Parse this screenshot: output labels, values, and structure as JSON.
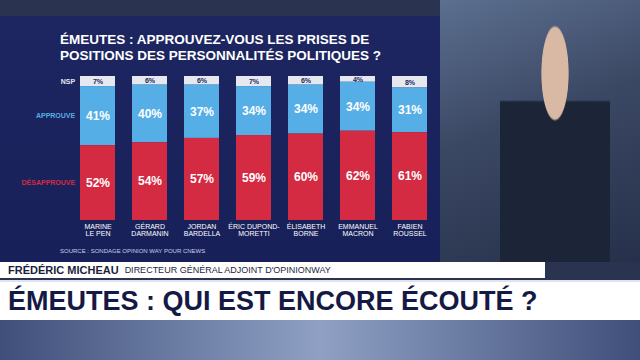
{
  "chart_data": {
    "type": "bar",
    "title": "ÉMEUTES : APPROUVEZ-VOUS LES PRISES DE POSITIONS DES PERSONNALITÉS POLITIQUES ?",
    "source": "SOURCE : SONDAGE OPINION WAY POUR CNEWS",
    "categories": [
      "MARINE\nLE PEN",
      "GÉRARD\nDARMANIN",
      "JORDAN\nBARDELLA",
      "ÉRIC DUPOND-\nMORETTI",
      "ÉLISABETH\nBORNE",
      "EMMANUEL\nMACRON",
      "FABIEN\nROUSSEL"
    ],
    "series": [
      {
        "name": "NSP",
        "color": "#e6e8f0",
        "values": [
          7,
          6,
          6,
          7,
          6,
          4,
          8
        ],
        "value_labels": [
          "7%",
          "6%",
          "6%",
          "7%",
          "6%",
          "4%",
          "8%"
        ]
      },
      {
        "name": "APPROUVE",
        "color": "#56aee6",
        "values": [
          41,
          40,
          37,
          34,
          34,
          34,
          31
        ],
        "value_labels": [
          "41%",
          "40%",
          "37%",
          "34%",
          "34%",
          "34%",
          "31%"
        ]
      },
      {
        "name": "DÉSAPPROUVE",
        "color": "#d42a42",
        "values": [
          52,
          54,
          57,
          59,
          60,
          62,
          61
        ],
        "value_labels": [
          "52%",
          "54%",
          "57%",
          "59%",
          "60%",
          "62%",
          "61%"
        ]
      }
    ],
    "stacked": true,
    "data_labels": true,
    "tick_labels": "x",
    "ylim": [
      0,
      100
    ]
  },
  "banner": {
    "name": "FRÉDÉRIC MICHEAU",
    "role": "DIRECTEUR GÉNÉRAL ADJOINT D'OPINIONWAY",
    "headline": "ÉMEUTES : QUI EST ENCORE ÉCOUTÉ ?"
  }
}
